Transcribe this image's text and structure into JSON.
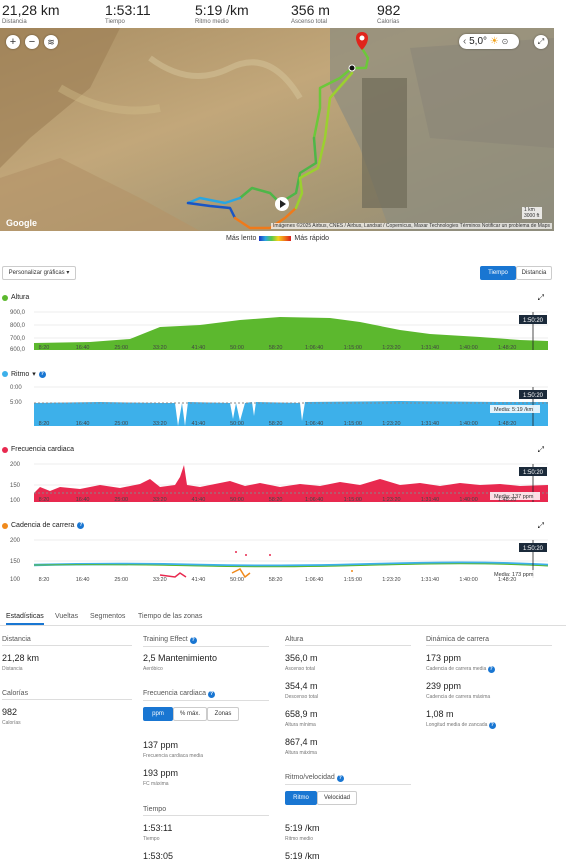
{
  "summary": [
    {
      "value": "21,28 km",
      "label": "Distancia"
    },
    {
      "value": "1:53:11",
      "label": "Tiempo"
    },
    {
      "value": "5:19 /km",
      "label": "Ritmo medio"
    },
    {
      "value": "356 m",
      "label": "Ascenso total"
    },
    {
      "value": "982",
      "label": "Calorías"
    }
  ],
  "map": {
    "zoom_in": "+",
    "zoom_out": "−",
    "temperature": "5,0°",
    "attribution": "Imágenes ©2025 Airbus, CNES / Airbus, Landsat / Copernicus, Maxar Technologies   Términos   Notificar un problema de Maps",
    "google": "Google",
    "scale_km": "1 km",
    "scale_ft": "3000 ft"
  },
  "pace_legend": {
    "slow": "Más lento",
    "fast": "Más rápido"
  },
  "controls": {
    "customize": "Personalizar gráficas ▾",
    "time": "Tiempo",
    "distance": "Distancia"
  },
  "time_ticks": [
    "8:20",
    "16:40",
    "25:00",
    "33:20",
    "41:40",
    "50:00",
    "58:20",
    "1:06:40",
    "1:15:00",
    "1:23:20",
    "1:31:40",
    "1:40:00",
    "1:48:20"
  ],
  "charts": {
    "altitude": {
      "title": "Altura",
      "yticks": [
        "900,0",
        "800,0",
        "700,0",
        "600,0"
      ],
      "marker": "1:50:20",
      "color": "#5cb82e"
    },
    "pace": {
      "title": "Ritmo",
      "yticks": [
        "0:00",
        "5:00",
        "10:00"
      ],
      "marker": "1:50:20",
      "avg": "Media: 5:19 /km",
      "color": "#3db0ea"
    },
    "hr": {
      "title": "Frecuencia cardiaca",
      "yticks": [
        "200",
        "150",
        "100"
      ],
      "marker": "1:50:20",
      "avg": "Media: 137 ppm",
      "color": "#e8294f"
    },
    "cadence": {
      "title": "Cadencia de carrera",
      "yticks": [
        "200",
        "150",
        "100"
      ],
      "marker": "1:50:20",
      "avg": "Media: 173 ppm",
      "color": "#f08a1c"
    }
  },
  "tabs": [
    "Estadísticas",
    "Vueltas",
    "Segmentos",
    "Tiempo de las zonas"
  ],
  "stats": {
    "distance": {
      "head": "Distancia",
      "value": "21,28 km",
      "label": "Distancia"
    },
    "calories": {
      "head": "Calorías",
      "value": "982",
      "label": "Calorías"
    },
    "training": {
      "head": "Training Effect",
      "value": "2,5 Mantenimiento",
      "label": "Aeróbico"
    },
    "heart": {
      "head": "Frecuencia cardiaca",
      "btns": [
        "ppm",
        "% máx.",
        "Zonas"
      ],
      "avg_value": "137 ppm",
      "avg_label": "Frecuencia cardiaca media",
      "max_value": "193 ppm",
      "max_label": "FC máxima"
    },
    "time": {
      "head": "Tiempo",
      "t1": "1:53:11",
      "l1": "Tiempo",
      "t2": "1:53:05"
    },
    "altitude": {
      "head": "Altura",
      "v1": "356,0 m",
      "l1": "Ascenso total",
      "v2": "354,4 m",
      "l2": "Descenso total",
      "v3": "658,9 m",
      "l3": "Altura mínima",
      "v4": "867,4 m",
      "l4": "Altura máxima"
    },
    "pace": {
      "head": "Ritmo/velocidad",
      "btns": [
        "Ritmo",
        "Velocidad"
      ],
      "v1": "5:19 /km",
      "l1": "Ritmo medio",
      "v2": "5:19 /km"
    },
    "cadence": {
      "head": "Dinámica de carrera",
      "v1": "173 ppm",
      "l1": "Cadencia de carrera media",
      "v2": "239 ppm",
      "l2": "Cadencia de carrera máxima",
      "v3": "1,08 m",
      "l3": "Longitud media de zancada"
    }
  }
}
